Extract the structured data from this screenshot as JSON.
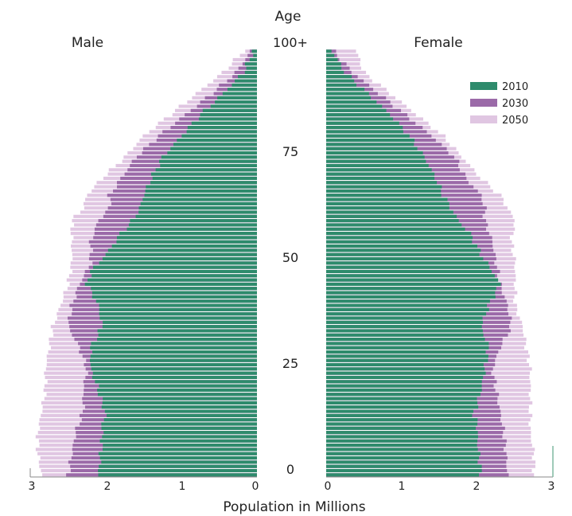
{
  "chart_data": {
    "type": "bar",
    "orientation": "horizontal-pyramid",
    "title": "Age",
    "xlabel": "Population in Millions",
    "ylabel": "Age",
    "left_panel_label": "Male",
    "right_panel_label": "Female",
    "age_tick_labels": [
      "0",
      "25",
      "50",
      "75",
      "100+"
    ],
    "age_ticks": [
      0,
      25,
      50,
      75,
      100
    ],
    "age_range": [
      0,
      100
    ],
    "x_tick_labels": [
      "3",
      "2",
      "1",
      "0"
    ],
    "x_ticks_right": [
      "0",
      "1",
      "2",
      "3"
    ],
    "xlim": [
      0,
      3
    ],
    "legend_position": "top-right",
    "series": [
      {
        "name": "2010",
        "color": "#2e8b6c",
        "male_profile": [
          [
            0,
            2.1
          ],
          [
            8,
            2.05
          ],
          [
            12,
            2.05
          ],
          [
            14,
            2.0
          ],
          [
            20,
            2.1
          ],
          [
            25,
            2.2
          ],
          [
            30,
            2.2
          ],
          [
            35,
            2.05
          ],
          [
            40,
            2.1
          ],
          [
            45,
            2.25
          ],
          [
            48,
            2.2
          ],
          [
            52,
            2.0
          ],
          [
            57,
            1.8
          ],
          [
            60,
            1.65
          ],
          [
            63,
            1.55
          ],
          [
            66,
            1.5
          ],
          [
            70,
            1.4
          ],
          [
            75,
            1.25
          ],
          [
            80,
            1.0
          ],
          [
            85,
            0.75
          ],
          [
            90,
            0.45
          ],
          [
            95,
            0.18
          ],
          [
            100,
            0.05
          ]
        ],
        "female_profile": [
          [
            0,
            2.05
          ],
          [
            8,
            2.0
          ],
          [
            12,
            2.0
          ],
          [
            14,
            1.95
          ],
          [
            20,
            2.05
          ],
          [
            25,
            2.1
          ],
          [
            30,
            2.15
          ],
          [
            35,
            2.05
          ],
          [
            40,
            2.15
          ],
          [
            45,
            2.3
          ],
          [
            48,
            2.2
          ],
          [
            52,
            2.05
          ],
          [
            57,
            1.9
          ],
          [
            60,
            1.75
          ],
          [
            63,
            1.65
          ],
          [
            66,
            1.55
          ],
          [
            70,
            1.45
          ],
          [
            75,
            1.3
          ],
          [
            80,
            1.1
          ],
          [
            85,
            0.85
          ],
          [
            90,
            0.55
          ],
          [
            95,
            0.25
          ],
          [
            100,
            0.08
          ]
        ]
      },
      {
        "name": "2030",
        "color": "#9b6aa8",
        "male_profile": [
          [
            0,
            2.5
          ],
          [
            5,
            2.45
          ],
          [
            10,
            2.4
          ],
          [
            15,
            2.3
          ],
          [
            20,
            2.3
          ],
          [
            25,
            2.25
          ],
          [
            30,
            2.35
          ],
          [
            35,
            2.5
          ],
          [
            40,
            2.45
          ],
          [
            45,
            2.35
          ],
          [
            50,
            2.2
          ],
          [
            55,
            2.2
          ],
          [
            60,
            2.1
          ],
          [
            63,
            1.95
          ],
          [
            66,
            1.95
          ],
          [
            70,
            1.8
          ],
          [
            75,
            1.6
          ],
          [
            80,
            1.3
          ],
          [
            85,
            0.95
          ],
          [
            90,
            0.6
          ],
          [
            95,
            0.28
          ],
          [
            100,
            0.08
          ]
        ],
        "female_profile": [
          [
            0,
            2.4
          ],
          [
            5,
            2.38
          ],
          [
            10,
            2.35
          ],
          [
            15,
            2.3
          ],
          [
            20,
            2.25
          ],
          [
            25,
            2.2
          ],
          [
            30,
            2.3
          ],
          [
            35,
            2.45
          ],
          [
            40,
            2.4
          ],
          [
            45,
            2.3
          ],
          [
            50,
            2.25
          ],
          [
            55,
            2.2
          ],
          [
            60,
            2.1
          ],
          [
            63,
            2.1
          ],
          [
            66,
            2.05
          ],
          [
            70,
            1.85
          ],
          [
            75,
            1.7
          ],
          [
            80,
            1.4
          ],
          [
            85,
            1.05
          ],
          [
            90,
            0.7
          ],
          [
            95,
            0.35
          ],
          [
            100,
            0.1
          ]
        ]
      },
      {
        "name": "2050",
        "color": "#e0c6e2",
        "male_profile": [
          [
            0,
            2.85
          ],
          [
            5,
            2.9
          ],
          [
            10,
            2.9
          ],
          [
            15,
            2.85
          ],
          [
            20,
            2.8
          ],
          [
            25,
            2.8
          ],
          [
            30,
            2.75
          ],
          [
            35,
            2.7
          ],
          [
            40,
            2.6
          ],
          [
            45,
            2.5
          ],
          [
            50,
            2.45
          ],
          [
            55,
            2.45
          ],
          [
            60,
            2.45
          ],
          [
            63,
            2.3
          ],
          [
            66,
            2.25
          ],
          [
            70,
            2.05
          ],
          [
            75,
            1.75
          ],
          [
            80,
            1.5
          ],
          [
            85,
            1.15
          ],
          [
            90,
            0.8
          ],
          [
            95,
            0.45
          ],
          [
            100,
            0.18
          ]
        ],
        "female_profile": [
          [
            0,
            2.75
          ],
          [
            5,
            2.75
          ],
          [
            10,
            2.7
          ],
          [
            15,
            2.7
          ],
          [
            20,
            2.7
          ],
          [
            25,
            2.7
          ],
          [
            30,
            2.65
          ],
          [
            35,
            2.6
          ],
          [
            40,
            2.5
          ],
          [
            45,
            2.5
          ],
          [
            50,
            2.5
          ],
          [
            55,
            2.45
          ],
          [
            60,
            2.5
          ],
          [
            63,
            2.4
          ],
          [
            66,
            2.3
          ],
          [
            70,
            2.05
          ],
          [
            75,
            1.8
          ],
          [
            80,
            1.55
          ],
          [
            85,
            1.2
          ],
          [
            90,
            0.85
          ],
          [
            95,
            0.5
          ],
          [
            100,
            0.4
          ]
        ]
      }
    ]
  }
}
